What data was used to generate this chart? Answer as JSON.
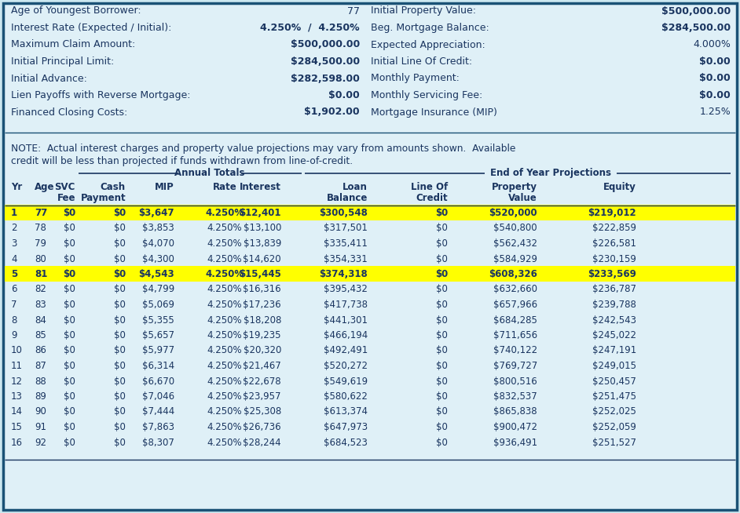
{
  "bg_color": "#cce8f0",
  "inner_bg": "#dff0f7",
  "border_color": "#1a5276",
  "header_info": [
    [
      "Age of Youngest Borrower:",
      "77",
      "Initial Property Value:",
      "$500,000.00"
    ],
    [
      "Interest Rate (Expected / Initial):",
      "4.250%  /  4.250%",
      "Beg. Mortgage Balance:",
      "$284,500.00"
    ],
    [
      "Maximum Claim Amount:",
      "$500,000.00",
      "Expected Appreciation:",
      "4.000%"
    ],
    [
      "Initial Principal Limit:",
      "$284,500.00",
      "Initial Line Of Credit:",
      "$0.00"
    ],
    [
      "Initial Advance:",
      "$282,598.00",
      "Monthly Payment:",
      "$0.00"
    ],
    [
      "Lien Payoffs with Reverse Mortgage:",
      "$0.00",
      "Monthly Servicing Fee:",
      "$0.00"
    ],
    [
      "Financed Closing Costs:",
      "$1,902.00",
      "Mortgage Insurance (MIP)",
      "1.25%"
    ]
  ],
  "left_val_bold": [
    false,
    true,
    true,
    true,
    true,
    true,
    true
  ],
  "right_val_bold": [
    true,
    true,
    false,
    true,
    true,
    true,
    false
  ],
  "note_line1": "NOTE:  Actual interest charges and property value projections may vary from amounts shown.  Available",
  "note_line2": "credit will be less than projected if funds withdrawn from line-of-credit.",
  "section_header_left": "Annual Totals",
  "section_header_right": "End of Year Projections",
  "col_headers_line1": [
    "Yr",
    "Age",
    "SVC",
    "Cash",
    "MIP",
    "Rate",
    "Interest",
    "Loan",
    "Line Of",
    "Property",
    "Equity"
  ],
  "col_headers_line2": [
    "",
    "",
    "Fee",
    "Payment",
    "",
    "",
    "",
    "Balance",
    "Credit",
    "Value",
    ""
  ],
  "rows": [
    [
      "1",
      "77",
      "$0",
      "$0",
      "$3,647",
      "4.250%",
      "$12,401",
      "$300,548",
      "$0",
      "$520,000",
      "$219,012"
    ],
    [
      "2",
      "78",
      "$0",
      "$0",
      "$3,853",
      "4.250%",
      "$13,100",
      "$317,501",
      "$0",
      "$540,800",
      "$222,859"
    ],
    [
      "3",
      "79",
      "$0",
      "$0",
      "$4,070",
      "4.250%",
      "$13,839",
      "$335,411",
      "$0",
      "$562,432",
      "$226,581"
    ],
    [
      "4",
      "80",
      "$0",
      "$0",
      "$4,300",
      "4.250%",
      "$14,620",
      "$354,331",
      "$0",
      "$584,929",
      "$230,159"
    ],
    [
      "5",
      "81",
      "$0",
      "$0",
      "$4,543",
      "4.250%",
      "$15,445",
      "$374,318",
      "$0",
      "$608,326",
      "$233,569"
    ],
    [
      "6",
      "82",
      "$0",
      "$0",
      "$4,799",
      "4.250%",
      "$16,316",
      "$395,432",
      "$0",
      "$632,660",
      "$236,787"
    ],
    [
      "7",
      "83",
      "$0",
      "$0",
      "$5,069",
      "4.250%",
      "$17,236",
      "$417,738",
      "$0",
      "$657,966",
      "$239,788"
    ],
    [
      "8",
      "84",
      "$0",
      "$0",
      "$5,355",
      "4.250%",
      "$18,208",
      "$441,301",
      "$0",
      "$684,285",
      "$242,543"
    ],
    [
      "9",
      "85",
      "$0",
      "$0",
      "$5,657",
      "4.250%",
      "$19,235",
      "$466,194",
      "$0",
      "$711,656",
      "$245,022"
    ],
    [
      "10",
      "86",
      "$0",
      "$0",
      "$5,977",
      "4.250%",
      "$20,320",
      "$492,491",
      "$0",
      "$740,122",
      "$247,191"
    ],
    [
      "11",
      "87",
      "$0",
      "$0",
      "$6,314",
      "4.250%",
      "$21,467",
      "$520,272",
      "$0",
      "$769,727",
      "$249,015"
    ],
    [
      "12",
      "88",
      "$0",
      "$0",
      "$6,670",
      "4.250%",
      "$22,678",
      "$549,619",
      "$0",
      "$800,516",
      "$250,457"
    ],
    [
      "13",
      "89",
      "$0",
      "$0",
      "$7,046",
      "4.250%",
      "$23,957",
      "$580,622",
      "$0",
      "$832,537",
      "$251,475"
    ],
    [
      "14",
      "90",
      "$0",
      "$0",
      "$7,444",
      "4.250%",
      "$25,308",
      "$613,374",
      "$0",
      "$865,838",
      "$252,025"
    ],
    [
      "15",
      "91",
      "$0",
      "$0",
      "$7,863",
      "4.250%",
      "$26,736",
      "$647,973",
      "$0",
      "$900,472",
      "$252,059"
    ],
    [
      "16",
      "92",
      "$0",
      "$0",
      "$8,307",
      "4.250%",
      "$28,244",
      "$684,523",
      "$0",
      "$936,491",
      "$251,527"
    ]
  ],
  "highlighted_rows": [
    0,
    4
  ],
  "highlight_color": "#ffff00",
  "text_dark": "#1a3560",
  "text_blue": "#1a3560",
  "font_size_info": 9.0,
  "font_size_note": 8.8,
  "font_size_table": 8.5
}
